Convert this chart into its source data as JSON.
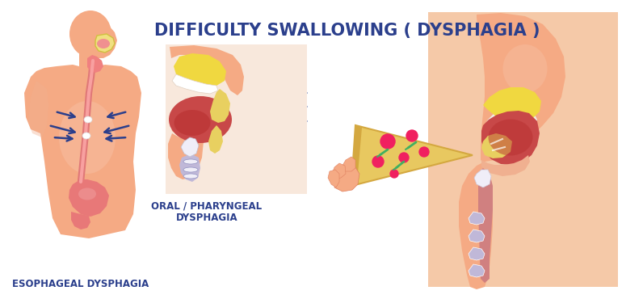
{
  "title": "DIFFICULTY SWALLOWING ( DYSPHAGIA )",
  "title_color": "#2B3F8C",
  "title_fontsize": 15,
  "label1": "ESOPHAGEAL DYSPHAGIA",
  "label2": "ORAL / PHARYNGEAL\nDYSPHAGIA",
  "label_color": "#2B3F8C",
  "label_fontsize": 8.5,
  "bg_color": "#ffffff",
  "skin_color": "#F5AA84",
  "skin_light": "#F8C9B0",
  "skin_dark": "#E08060",
  "skin_mid": "#F0B090",
  "red_dark": "#B83030",
  "red_mid": "#C84848",
  "red_light": "#D87070",
  "yellow_bright": "#F0D840",
  "yellow_mid": "#E8D060",
  "yellow_dark": "#C8A820",
  "blue_arrow": "#2B3F8C",
  "esoph_color": "#E07878",
  "stomach_color": "#E87878",
  "pizza_color": "#E8C860",
  "pizza_crust": "#D4A840",
  "pizza_topping_r": "#F02060",
  "pizza_herb": "#40B060",
  "right_bg": "#F5C9A8",
  "lavender": "#C0B8D8",
  "white_tissue": "#F0EEF8",
  "mid_box_bg": "#F8E8DC",
  "throat_blue": "#9090C0"
}
